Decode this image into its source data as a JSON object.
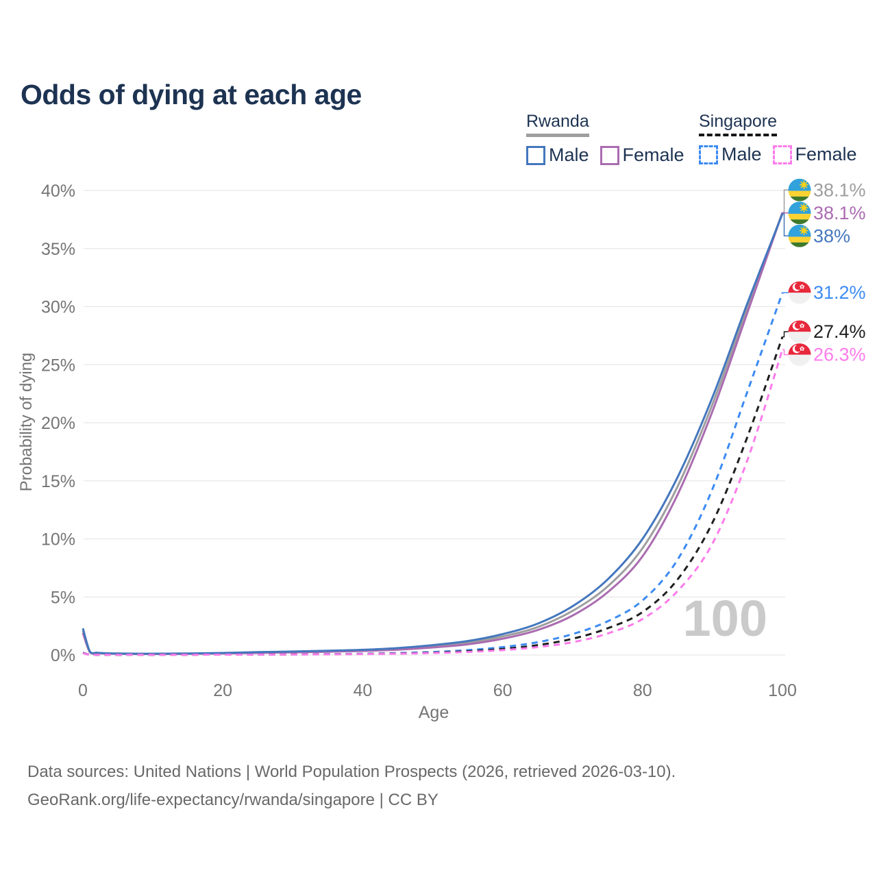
{
  "page": {
    "title": "Odds of dying at each age",
    "watermark": "100"
  },
  "legend": {
    "groups": [
      {
        "country": "Rwanda",
        "line_style": "solid",
        "underline_color": "#9e9e9e",
        "items": [
          {
            "label": "Male",
            "color": "#4477bd",
            "dashed": false
          },
          {
            "label": "Female",
            "color": "#aa6cb0",
            "dashed": false
          }
        ]
      },
      {
        "country": "Singapore",
        "line_style": "dashed",
        "underline_color": "#161616",
        "items": [
          {
            "label": "Male",
            "color": "#3d8bf2",
            "dashed": true
          },
          {
            "label": "Female",
            "color": "#fc7ceb",
            "dashed": true
          }
        ]
      }
    ]
  },
  "chart_data": {
    "type": "line",
    "title": "Odds of dying at each age",
    "xlabel": "Age",
    "ylabel": "Probability of dying",
    "xlim": [
      0,
      100
    ],
    "ylim": [
      0,
      40
    ],
    "x_ticks": [
      0,
      20,
      40,
      60,
      80,
      100
    ],
    "y_ticks": [
      0,
      5,
      10,
      15,
      20,
      25,
      30,
      35,
      40
    ],
    "y_tick_suffix": "%",
    "grid": "horizontal",
    "legend_position": "top-right",
    "ages": [
      0,
      1,
      2,
      3,
      5,
      10,
      15,
      20,
      25,
      30,
      35,
      40,
      45,
      50,
      55,
      60,
      65,
      70,
      75,
      80,
      85,
      90,
      95,
      100
    ],
    "series": [
      {
        "name": "Rwanda Total",
        "country": "Rwanda",
        "sex": "Total",
        "flag": "rwanda-flag",
        "color": "#9e9e9e",
        "dashed": false,
        "end_label": "38.1%",
        "values": [
          2.1,
          0.27,
          0.18,
          0.14,
          0.12,
          0.1,
          0.11,
          0.16,
          0.22,
          0.27,
          0.33,
          0.4,
          0.53,
          0.75,
          1.05,
          1.6,
          2.4,
          3.8,
          5.9,
          9.2,
          14.5,
          21.6,
          29.9,
          38.1
        ]
      },
      {
        "name": "Rwanda Female",
        "country": "Rwanda",
        "sex": "Female",
        "flag": "rwanda-flag",
        "color": "#aa6cb0",
        "dashed": false,
        "end_label": "38.1%",
        "values": [
          1.9,
          0.24,
          0.16,
          0.13,
          0.1,
          0.09,
          0.1,
          0.13,
          0.18,
          0.23,
          0.28,
          0.35,
          0.46,
          0.65,
          0.92,
          1.4,
          2.15,
          3.4,
          5.4,
          8.5,
          13.8,
          21.0,
          29.5,
          38.1
        ]
      },
      {
        "name": "Rwanda Male",
        "country": "Rwanda",
        "sex": "Male",
        "flag": "rwanda-flag",
        "color": "#4477bd",
        "dashed": false,
        "end_label": "38%",
        "values": [
          2.3,
          0.3,
          0.2,
          0.16,
          0.13,
          0.11,
          0.13,
          0.18,
          0.25,
          0.3,
          0.37,
          0.45,
          0.6,
          0.85,
          1.2,
          1.8,
          2.7,
          4.2,
          6.5,
          10.0,
          15.3,
          22.2,
          30.3,
          38.0
        ]
      },
      {
        "name": "Singapore Male",
        "country": "Singapore",
        "sex": "Male",
        "flag": "singapore-flag",
        "color": "#3d8bf2",
        "dashed": true,
        "end_label": "31.2%",
        "values": [
          0.2,
          0.02,
          0.015,
          0.012,
          0.01,
          0.01,
          0.02,
          0.04,
          0.05,
          0.06,
          0.08,
          0.11,
          0.17,
          0.26,
          0.42,
          0.68,
          1.1,
          1.8,
          2.9,
          4.7,
          8.2,
          14.3,
          22.7,
          31.2
        ]
      },
      {
        "name": "Singapore Total",
        "country": "Singapore",
        "sex": "Total",
        "flag": "singapore-flag",
        "color": "#1f1f1f",
        "dashed": true,
        "end_label": "27.4%",
        "values": [
          0.18,
          0.018,
          0.013,
          0.011,
          0.01,
          0.01,
          0.016,
          0.03,
          0.04,
          0.05,
          0.07,
          0.09,
          0.13,
          0.2,
          0.32,
          0.52,
          0.85,
          1.4,
          2.3,
          3.7,
          6.5,
          11.4,
          18.8,
          27.4
        ]
      },
      {
        "name": "Singapore Female",
        "country": "Singapore",
        "sex": "Female",
        "flag": "singapore-flag",
        "color": "#fc7ceb",
        "dashed": true,
        "end_label": "26.3%",
        "values": [
          0.16,
          0.015,
          0.012,
          0.01,
          0.008,
          0.008,
          0.012,
          0.025,
          0.035,
          0.045,
          0.06,
          0.08,
          0.11,
          0.17,
          0.26,
          0.42,
          0.68,
          1.1,
          1.85,
          3.1,
          5.5,
          9.6,
          16.8,
          26.3
        ]
      }
    ]
  },
  "footer": {
    "lines": [
      "Data sources: United Nations | World Population Prospects (2026, retrieved 2026-03-10).",
      "GeoRank.org/life-expectancy/rwanda/singapore | CC BY"
    ]
  }
}
